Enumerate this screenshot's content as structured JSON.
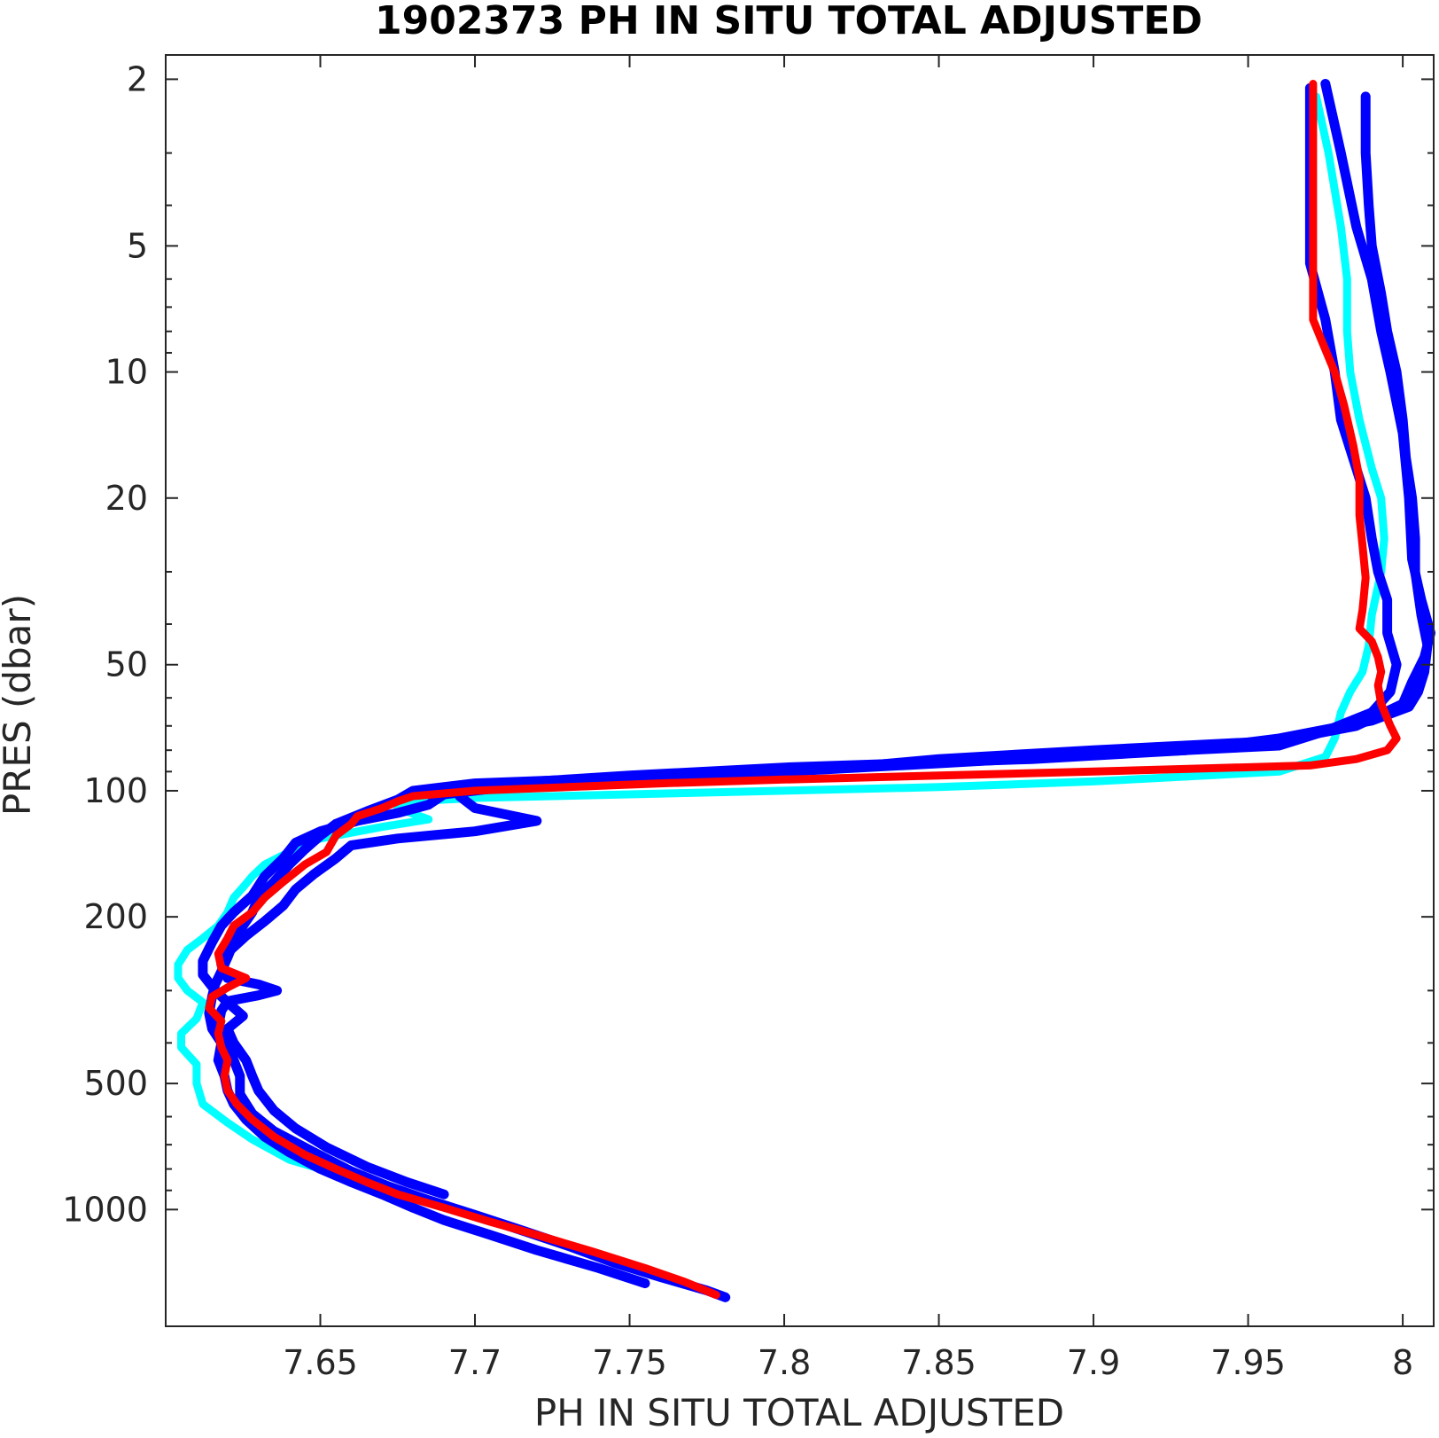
{
  "chart_data": {
    "type": "line",
    "title": "1902373  PH IN SITU TOTAL ADJUSTED",
    "xlabel": "PH IN SITU TOTAL ADJUSTED",
    "ylabel": "PRES (dbar)",
    "xlim": [
      7.6,
      8.01
    ],
    "ylim": [
      1.75,
      1900
    ],
    "y_scale": "log",
    "y_reversed": true,
    "grid": false,
    "x_ticks": [
      7.65,
      7.7,
      7.75,
      7.8,
      7.85,
      7.9,
      7.95,
      8
    ],
    "x_tick_labels": [
      "7.65",
      "7.7",
      "7.75",
      "7.8",
      "7.85",
      "7.9",
      "7.95",
      "8"
    ],
    "y_ticks": [
      2,
      5,
      10,
      20,
      50,
      100,
      200,
      500,
      1000
    ],
    "y_tick_labels": [
      "2",
      "5",
      "10",
      "20",
      "50",
      "100",
      "200",
      "500",
      "1000"
    ],
    "series": [
      {
        "color": "#00ffff",
        "width": 9,
        "points": [
          [
            7.972,
            2.2
          ],
          [
            7.976,
            3
          ],
          [
            7.98,
            4.5
          ],
          [
            7.982,
            6
          ],
          [
            7.982,
            8
          ],
          [
            7.983,
            10
          ],
          [
            7.986,
            13
          ],
          [
            7.99,
            17
          ],
          [
            7.993,
            20
          ],
          [
            7.994,
            25
          ],
          [
            7.993,
            30
          ],
          [
            7.99,
            38
          ],
          [
            7.989,
            45
          ],
          [
            7.987,
            52
          ],
          [
            7.983,
            58
          ],
          [
            7.98,
            65
          ],
          [
            7.978,
            75
          ],
          [
            7.975,
            83
          ],
          [
            7.96,
            90
          ],
          [
            7.9,
            95
          ],
          [
            7.85,
            98
          ],
          [
            7.8,
            100
          ],
          [
            7.75,
            102
          ],
          [
            7.7,
            104
          ],
          [
            7.68,
            106
          ],
          [
            7.675,
            110
          ],
          [
            7.685,
            117
          ],
          [
            7.67,
            122
          ],
          [
            7.65,
            130
          ],
          [
            7.64,
            140
          ],
          [
            7.632,
            150
          ],
          [
            7.628,
            160
          ],
          [
            7.625,
            170
          ],
          [
            7.622,
            180
          ],
          [
            7.62,
            195
          ],
          [
            7.617,
            210
          ],
          [
            7.612,
            225
          ],
          [
            7.607,
            240
          ],
          [
            7.604,
            260
          ],
          [
            7.604,
            280
          ],
          [
            7.607,
            300
          ],
          [
            7.612,
            320
          ],
          [
            7.61,
            350
          ],
          [
            7.605,
            380
          ],
          [
            7.605,
            410
          ],
          [
            7.61,
            450
          ],
          [
            7.61,
            500
          ],
          [
            7.612,
            560
          ],
          [
            7.62,
            620
          ],
          [
            7.628,
            680
          ],
          [
            7.64,
            760
          ],
          [
            7.655,
            820
          ],
          [
            7.668,
            860
          ]
        ]
      },
      {
        "color": "#0000ff",
        "width": 11,
        "points": [
          [
            7.97,
            2.1
          ],
          [
            7.97,
            3
          ],
          [
            7.97,
            4
          ],
          [
            7.97,
            5.5
          ],
          [
            7.975,
            7.5
          ],
          [
            7.978,
            10
          ],
          [
            7.98,
            13
          ],
          [
            7.985,
            17
          ],
          [
            7.988,
            20
          ],
          [
            7.99,
            25
          ],
          [
            7.992,
            30
          ],
          [
            7.995,
            35
          ],
          [
            7.995,
            42
          ],
          [
            7.998,
            50
          ],
          [
            7.996,
            58
          ],
          [
            7.99,
            65
          ],
          [
            7.975,
            72
          ],
          [
            7.96,
            78
          ],
          [
            7.9,
            82
          ],
          [
            7.85,
            86
          ],
          [
            7.8,
            90
          ],
          [
            7.75,
            93
          ],
          [
            7.7,
            96
          ],
          [
            7.68,
            100
          ],
          [
            7.675,
            105
          ],
          [
            7.665,
            112
          ],
          [
            7.655,
            120
          ],
          [
            7.65,
            128
          ],
          [
            7.645,
            138
          ],
          [
            7.64,
            150
          ],
          [
            7.635,
            165
          ],
          [
            7.63,
            180
          ],
          [
            7.628,
            195
          ],
          [
            7.625,
            210
          ],
          [
            7.622,
            230
          ],
          [
            7.62,
            250
          ],
          [
            7.618,
            270
          ],
          [
            7.616,
            290
          ],
          [
            7.615,
            310
          ],
          [
            7.614,
            340
          ],
          [
            7.615,
            370
          ],
          [
            7.618,
            400
          ],
          [
            7.617,
            440
          ],
          [
            7.619,
            480
          ],
          [
            7.62,
            520
          ],
          [
            7.622,
            560
          ],
          [
            7.626,
            610
          ],
          [
            7.632,
            670
          ],
          [
            7.64,
            730
          ],
          [
            7.65,
            800
          ],
          [
            7.66,
            860
          ],
          [
            7.67,
            920
          ],
          [
            7.68,
            990
          ],
          [
            7.69,
            1060
          ],
          [
            7.705,
            1150
          ],
          [
            7.72,
            1250
          ],
          [
            7.74,
            1380
          ],
          [
            7.755,
            1500
          ]
        ]
      },
      {
        "color": "#0000ff",
        "width": 11,
        "points": [
          [
            7.988,
            2.2
          ],
          [
            7.988,
            3
          ],
          [
            7.989,
            4
          ],
          [
            7.99,
            5
          ],
          [
            7.993,
            6.5
          ],
          [
            7.995,
            8
          ],
          [
            7.998,
            10
          ],
          [
            8.0,
            13
          ],
          [
            8.001,
            16
          ],
          [
            8.003,
            20
          ],
          [
            8.004,
            25
          ],
          [
            8.004,
            30
          ],
          [
            8.006,
            38
          ],
          [
            8.008,
            45
          ],
          [
            8.007,
            52
          ],
          [
            8.005,
            58
          ],
          [
            8.002,
            63
          ],
          [
            7.99,
            68
          ],
          [
            7.96,
            75
          ],
          [
            7.93,
            80
          ],
          [
            7.88,
            84
          ],
          [
            7.8,
            88
          ],
          [
            7.75,
            92
          ],
          [
            7.7,
            97
          ],
          [
            7.695,
            103
          ],
          [
            7.7,
            110
          ],
          [
            7.72,
            118
          ],
          [
            7.7,
            125
          ],
          [
            7.675,
            130
          ],
          [
            7.66,
            135
          ],
          [
            7.655,
            145
          ],
          [
            7.648,
            158
          ],
          [
            7.642,
            172
          ],
          [
            7.638,
            188
          ],
          [
            7.632,
            205
          ],
          [
            7.626,
            222
          ],
          [
            7.621,
            240
          ],
          [
            7.618,
            260
          ],
          [
            7.62,
            280
          ],
          [
            7.63,
            290
          ],
          [
            7.636,
            300
          ],
          [
            7.63,
            308
          ],
          [
            7.62,
            318
          ],
          [
            7.618,
            335
          ],
          [
            7.617,
            365
          ],
          [
            7.62,
            400
          ],
          [
            7.622,
            440
          ],
          [
            7.624,
            480
          ],
          [
            7.624,
            530
          ],
          [
            7.628,
            590
          ],
          [
            7.635,
            650
          ],
          [
            7.648,
            730
          ],
          [
            7.66,
            810
          ],
          [
            7.672,
            880
          ],
          [
            7.685,
            950
          ],
          [
            7.7,
            1030
          ],
          [
            7.715,
            1120
          ],
          [
            7.73,
            1220
          ],
          [
            7.745,
            1340
          ],
          [
            7.76,
            1450
          ],
          [
            7.775,
            1560
          ],
          [
            7.781,
            1620
          ]
        ]
      },
      {
        "color": "#0000ff",
        "width": 11,
        "points": [
          [
            7.975,
            2.05
          ],
          [
            7.98,
            3
          ],
          [
            7.985,
            4.5
          ],
          [
            7.99,
            6
          ],
          [
            7.993,
            8
          ],
          [
            7.996,
            10
          ],
          [
            8.0,
            14
          ],
          [
            8.002,
            20
          ],
          [
            8.003,
            28
          ],
          [
            8.006,
            35
          ],
          [
            8.009,
            42
          ],
          [
            8.007,
            48
          ],
          [
            8.003,
            55
          ],
          [
            8.0,
            62
          ],
          [
            7.985,
            70
          ],
          [
            7.96,
            76
          ],
          [
            7.9,
            80
          ],
          [
            7.85,
            84
          ],
          [
            7.82,
            88
          ],
          [
            7.76,
            92
          ],
          [
            7.72,
            96
          ],
          [
            7.69,
            102
          ],
          [
            7.685,
            108
          ],
          [
            7.675,
            113
          ],
          [
            7.662,
            118
          ],
          [
            7.65,
            125
          ],
          [
            7.642,
            133
          ],
          [
            7.638,
            145
          ],
          [
            7.632,
            160
          ],
          [
            7.628,
            178
          ],
          [
            7.622,
            195
          ],
          [
            7.618,
            210
          ],
          [
            7.615,
            230
          ],
          [
            7.612,
            255
          ],
          [
            7.612,
            275
          ],
          [
            7.616,
            300
          ],
          [
            7.62,
            320
          ],
          [
            7.625,
            345
          ],
          [
            7.62,
            370
          ],
          [
            7.622,
            400
          ],
          [
            7.626,
            440
          ],
          [
            7.628,
            480
          ],
          [
            7.63,
            520
          ],
          [
            7.635,
            580
          ],
          [
            7.642,
            640
          ],
          [
            7.652,
            710
          ],
          [
            7.665,
            790
          ],
          [
            7.678,
            860
          ],
          [
            7.69,
            920
          ]
        ]
      },
      {
        "color": "#ff0000",
        "width": 9,
        "points": [
          [
            7.971,
            2.05
          ],
          [
            7.971,
            3
          ],
          [
            7.971,
            4.5
          ],
          [
            7.971,
            6
          ],
          [
            7.971,
            7.5
          ],
          [
            7.974,
            8.5
          ],
          [
            7.978,
            10
          ],
          [
            7.981,
            12
          ],
          [
            7.984,
            15
          ],
          [
            7.986,
            18
          ],
          [
            7.986,
            22
          ],
          [
            7.987,
            26
          ],
          [
            7.988,
            31
          ],
          [
            7.987,
            37
          ],
          [
            7.986,
            41
          ],
          [
            7.99,
            44
          ],
          [
            7.992,
            48
          ],
          [
            7.993,
            52
          ],
          [
            7.992,
            56
          ],
          [
            7.993,
            62
          ],
          [
            7.996,
            70
          ],
          [
            7.998,
            75
          ],
          [
            7.995,
            80
          ],
          [
            7.985,
            84
          ],
          [
            7.97,
            87
          ],
          [
            7.9,
            90
          ],
          [
            7.85,
            92
          ],
          [
            7.8,
            94
          ],
          [
            7.76,
            96
          ],
          [
            7.73,
            98
          ],
          [
            7.7,
            100
          ],
          [
            7.68,
            103
          ],
          [
            7.675,
            106
          ],
          [
            7.67,
            110
          ],
          [
            7.662,
            115
          ],
          [
            7.66,
            120
          ],
          [
            7.655,
            128
          ],
          [
            7.652,
            140
          ],
          [
            7.645,
            150
          ],
          [
            7.638,
            165
          ],
          [
            7.632,
            180
          ],
          [
            7.628,
            195
          ],
          [
            7.622,
            210
          ],
          [
            7.62,
            225
          ],
          [
            7.617,
            245
          ],
          [
            7.618,
            265
          ],
          [
            7.626,
            280
          ],
          [
            7.62,
            295
          ],
          [
            7.615,
            310
          ],
          [
            7.614,
            330
          ],
          [
            7.618,
            355
          ],
          [
            7.617,
            380
          ],
          [
            7.618,
            410
          ],
          [
            7.62,
            440
          ],
          [
            7.619,
            480
          ],
          [
            7.62,
            520
          ],
          [
            7.623,
            560
          ],
          [
            7.628,
            610
          ],
          [
            7.635,
            670
          ],
          [
            7.645,
            740
          ],
          [
            7.655,
            800
          ],
          [
            7.665,
            860
          ],
          [
            7.675,
            920
          ],
          [
            7.69,
            990
          ],
          [
            7.705,
            1070
          ],
          [
            7.72,
            1150
          ],
          [
            7.738,
            1260
          ],
          [
            7.755,
            1380
          ],
          [
            7.768,
            1490
          ],
          [
            7.778,
            1600
          ]
        ]
      }
    ]
  }
}
